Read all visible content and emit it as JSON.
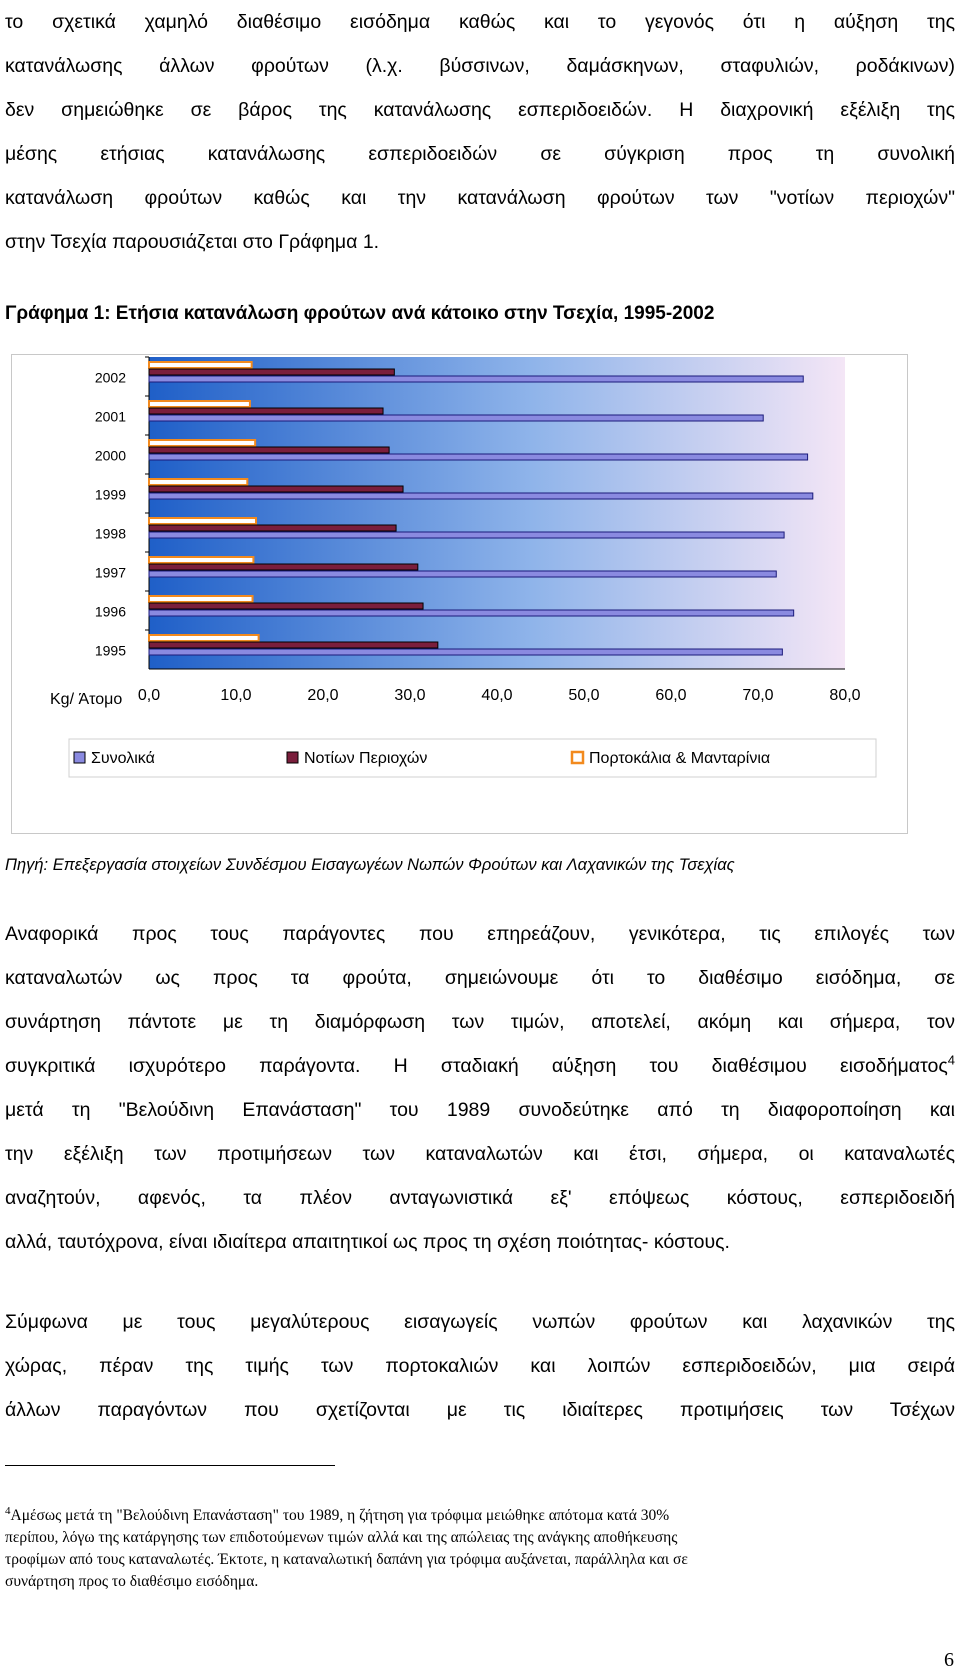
{
  "intro": {
    "lines": [
      "το σχετικά χαμηλό διαθέσιμο εισόδημα καθώς και το γεγονός ότι η αύξηση της",
      "κατανάλωσης άλλων φρούτων (λ.χ. βύσσινων, δαμάσκηνων, σταφυλιών, ροδάκινων)",
      "δεν σημειώθηκε σε βάρος της κατανάλωσης εσπεριδοειδών. Η διαχρονική εξέλιξη της",
      "μέσης ετήσιας κατανάλωσης εσπεριδοειδών σε σύγκριση προς τη συνολική",
      "κατανάλωση φρούτων καθώς και την κατανάλωση φρούτων των \"νοτίων περιοχών\"",
      "στην Τσεχία παρουσιάζεται στο Γράφημα 1."
    ]
  },
  "chart_title": "Γράφημα 1: Ετήσια κατανάλωση φρούτων ανά κάτοικο στην Τσεχία, 1995-2002",
  "chart_data": {
    "type": "bar",
    "orientation": "horizontal",
    "categories": [
      "2002",
      "2001",
      "2000",
      "1999",
      "1998",
      "1997",
      "1996",
      "1995"
    ],
    "series": [
      {
        "name": "Συνολικά",
        "values": [
          75.2,
          70.6,
          75.7,
          76.3,
          73.0,
          72.1,
          74.1,
          72.8
        ]
      },
      {
        "name": "Νοτίων Περιοχών",
        "values": [
          28.2,
          26.9,
          27.6,
          29.2,
          28.4,
          30.9,
          31.5,
          33.2
        ]
      },
      {
        "name": "Πορτοκάλια & Μανταρίνια",
        "values": [
          11.8,
          11.6,
          12.2,
          11.3,
          12.3,
          12.0,
          11.9,
          12.6
        ]
      }
    ],
    "xlim": [
      0,
      80
    ],
    "xticks": [
      "0,0",
      "10,0",
      "20,0",
      "30,0",
      "40,0",
      "50,0",
      "60,0",
      "70,0",
      "80,0"
    ],
    "xlabel": "Kg/ Άτομο",
    "colors": {
      "Συνολικά": "#8a8ae0",
      "Νοτίων Περιοχών": "#7a1e3c",
      "Πορτοκάλια & Μανταρίνια": "#f28a1e"
    },
    "legend_position": "bottom",
    "grid": false
  },
  "source": "Πηγή: Επεξεργασία στοιχείων Συνδέσμου Εισαγωγέων Νωπών Φρούτων και Λαχανικών της Τσεχίας",
  "para2": {
    "lines": [
      "Αναφορικά προς τους παράγοντες που επηρεάζουν, γενικότερα, τις επιλογές των",
      "καταναλωτών ως προς τα φρούτα, σημειώνουμε ότι το διαθέσιμο εισόδημα, σε",
      "συνάρτηση πάντοτε με τη διαμόρφωση των τιμών, αποτελεί, ακόμη και σήμερα, τον",
      "συγκριτικά ισχυρότερο παράγοντα. Η σταδιακή αύξηση του διαθέσιμου εισοδήματος",
      "μετά τη \"Βελούδινη Επανάσταση\" του 1989 συνοδεύτηκε από τη διαφοροποίηση και",
      "την εξέλιξη των προτιμήσεων των καταναλωτών και έτσι, σήμερα, οι καταναλωτές",
      "αναζητούν, αφενός, τα πλέον ανταγωνιστικά εξ' επόψεως κόστους, εσπεριδοειδή",
      "αλλά, ταυτόχρονα, είναι ιδιαίτερα απαιτητικοί ως προς τη σχέση ποιότητας- κόστους."
    ],
    "footnote_ref": "4"
  },
  "para3": {
    "lines": [
      "Σύμφωνα με τους μεγαλύτερους εισαγωγείς νωπών φρούτων και λαχανικών της",
      "χώρας, πέραν της τιμής των πορτοκαλιών και λοιπών εσπεριδοειδών, μια σειρά",
      "άλλων παραγόντων που σχετίζονται με τις ιδιαίτερες προτιμήσεις των Τσέχων"
    ]
  },
  "footnote": {
    "number": "4",
    "lines": [
      "Αμέσως μετά τη \"Βελούδινη Επανάσταση\" του 1989, η ζήτηση για τρόφιμα μειώθηκε απότομα κατά 30%",
      "περίπου, λόγω της κατάργησης των επιδοτούμενων τιμών αλλά και της απώλειας της ανάγκης αποθήκευσης",
      "τροφίμων από τους καταναλωτές. Έκτοτε, η καταναλωτική δαπάνη για τρόφιμα αυξάνεται, παράλληλα και σε",
      "συνάρτηση προς το διαθέσιμο εισόδημα."
    ]
  },
  "page_number": "6"
}
